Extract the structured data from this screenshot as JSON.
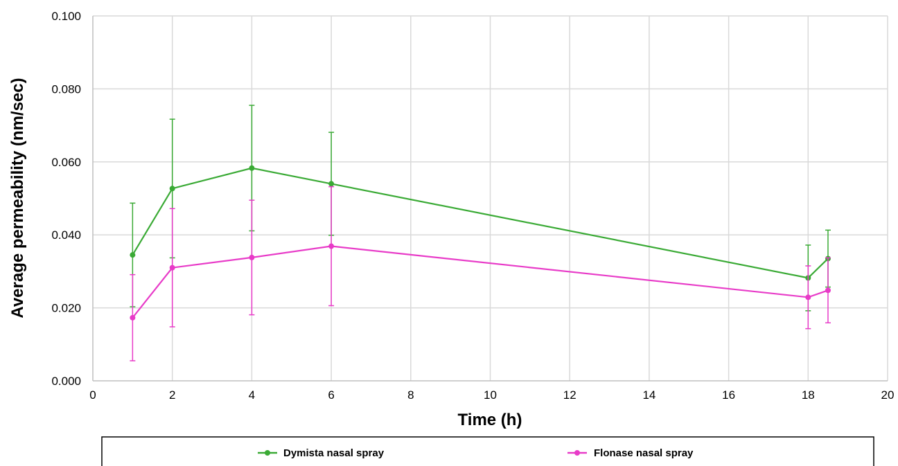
{
  "chart_data": {
    "type": "line",
    "title": "",
    "xlabel": "Time (h)",
    "ylabel": "Average permeability (nm/sec)",
    "xlim": [
      0,
      20
    ],
    "ylim": [
      0,
      0.1
    ],
    "xticks": [
      "0",
      "2",
      "4",
      "6",
      "8",
      "10",
      "12",
      "14",
      "16",
      "18",
      "20"
    ],
    "yticks": [
      "0.000",
      "0.020",
      "0.040",
      "0.060",
      "0.080",
      "0.100"
    ],
    "grid": true,
    "legend_position": "bottom",
    "x": [
      1,
      2,
      4,
      6,
      18,
      18.5
    ],
    "series": [
      {
        "name": "Dymista nasal spray",
        "color": "#3aaa35",
        "values": [
          0.0345,
          0.0527,
          0.0583,
          0.054,
          0.0282,
          0.0335
        ],
        "error": [
          0.0142,
          0.019,
          0.0172,
          0.0141,
          0.009,
          0.0078
        ]
      },
      {
        "name": "Flonase nasal spray",
        "color": "#e83bc8",
        "values": [
          0.0173,
          0.031,
          0.0338,
          0.0369,
          0.0229,
          0.0248
        ],
        "error": [
          0.0118,
          0.0162,
          0.0157,
          0.0163,
          0.0086,
          0.0089
        ]
      }
    ]
  }
}
